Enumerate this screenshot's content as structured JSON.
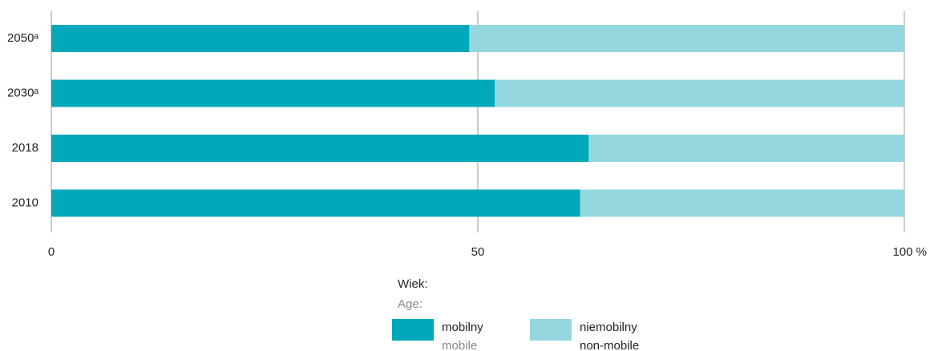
{
  "chart_data": {
    "type": "stacked_barh",
    "categories": [
      "2050ᵃ",
      "2030ᵃ",
      "2018",
      "2010"
    ],
    "series": [
      {
        "name": "mobilny",
        "name_en": "mobile",
        "color": "#00a8b9",
        "values": [
          49,
          52,
          63,
          62
        ]
      },
      {
        "name": "niemobilny",
        "name_en": "non-mobile",
        "color": "#95d7df",
        "values": [
          51,
          48,
          37,
          38
        ]
      }
    ],
    "xlim": [
      0,
      100
    ],
    "xticks": [
      0,
      50,
      {
        "value": 100,
        "label": "100 %"
      }
    ],
    "grid": true,
    "legend_title": "Wiek:",
    "legend_title_en": "Age:"
  }
}
